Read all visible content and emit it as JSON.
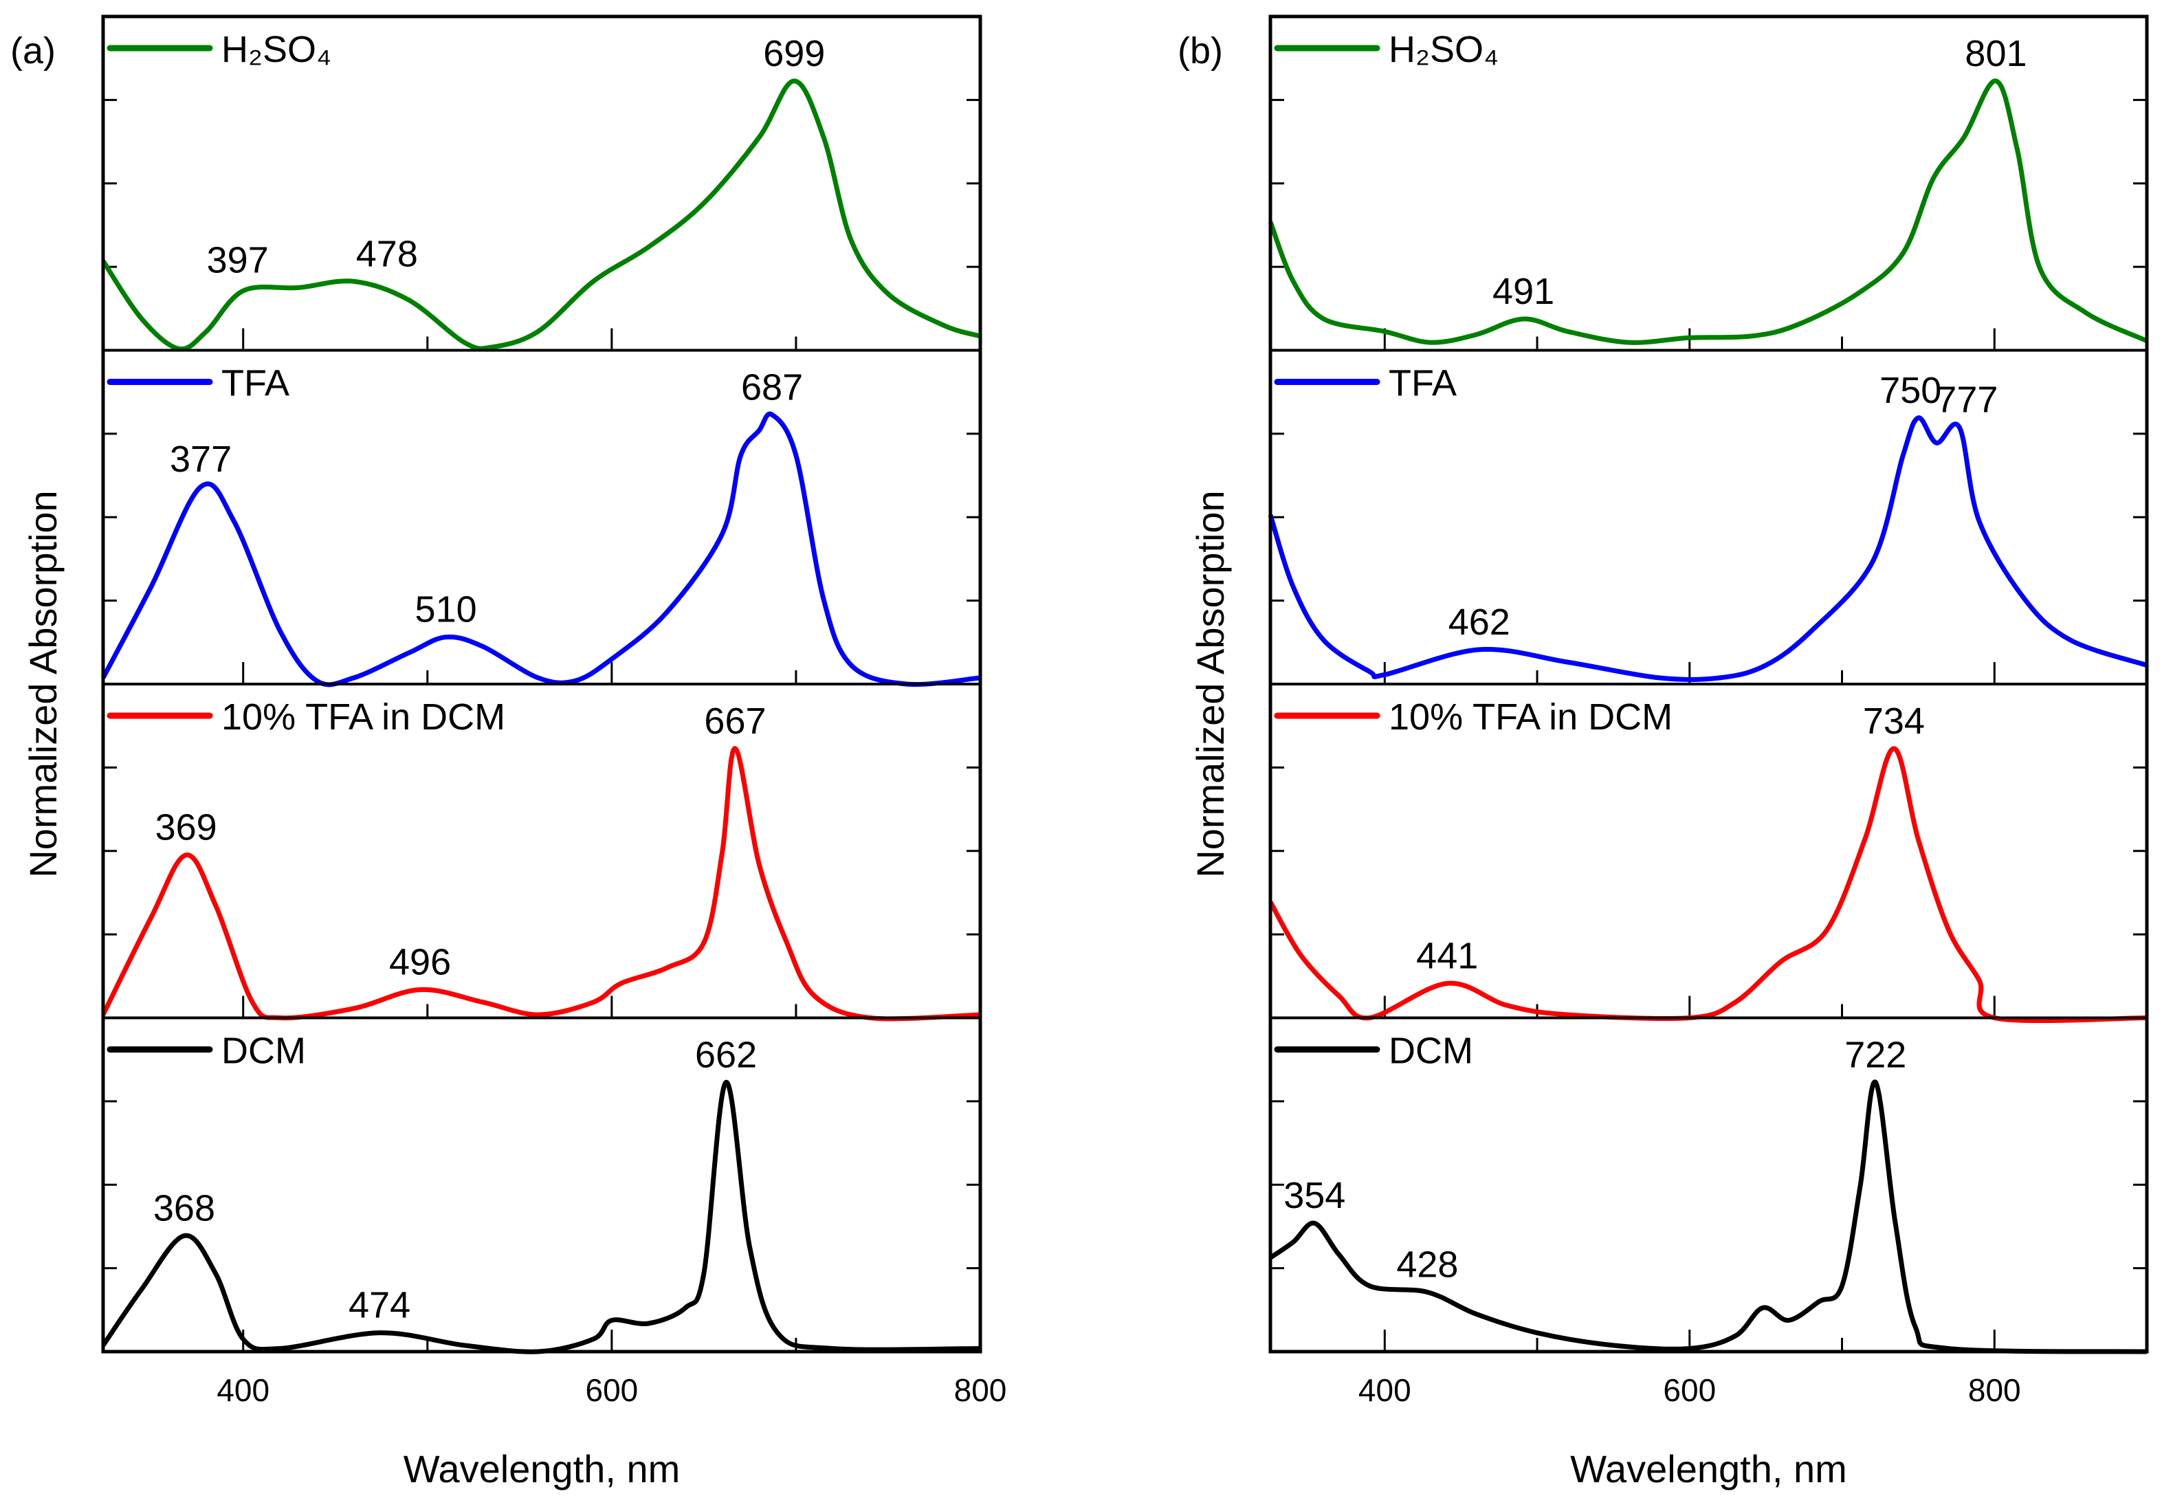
{
  "chart_data": [
    {
      "type": "line",
      "panel_label": "(a)",
      "xlabel": "Wavelength, nm",
      "ylabel": "Normalized Absorption",
      "xlim": [
        324,
        800
      ],
      "xticks": [
        400,
        600,
        800
      ],
      "minor_xticks": [
        500,
        700
      ],
      "tick_labels": [
        "400",
        "600",
        "800"
      ],
      "ylim_each": [
        0,
        1
      ],
      "legend_placement": "top-left of each subplot",
      "series": [
        {
          "name": "H₂SO₄",
          "color": "#008000",
          "x": [
            324,
            345,
            365,
            380,
            400,
            430,
            460,
            490,
            520,
            535,
            560,
            590,
            620,
            650,
            680,
            699,
            715,
            730,
            750,
            780,
            800
          ],
          "y": [
            0.285,
            0.1,
            0.005,
            0.06,
            0.19,
            0.2,
            0.22,
            0.16,
            0.025,
            0.01,
            0.06,
            0.22,
            0.33,
            0.47,
            0.68,
            0.86,
            0.68,
            0.35,
            0.18,
            0.08,
            0.045
          ],
          "annotations": [
            {
              "label": "397",
              "x": 397,
              "y": 0.2
            },
            {
              "label": "478",
              "x": 478,
              "y": 0.22
            },
            {
              "label": "699",
              "x": 699,
              "y": 0.86
            }
          ]
        },
        {
          "name": "TFA",
          "color": "#0000ff",
          "x": [
            324,
            350,
            377,
            395,
            420,
            440,
            460,
            490,
            510,
            530,
            560,
            580,
            600,
            630,
            660,
            670,
            680,
            687,
            700,
            715,
            730,
            760,
            800
          ],
          "y": [
            0.02,
            0.31,
            0.63,
            0.52,
            0.17,
            0.01,
            0.02,
            0.1,
            0.15,
            0.12,
            0.02,
            0.01,
            0.08,
            0.23,
            0.48,
            0.73,
            0.81,
            0.86,
            0.73,
            0.27,
            0.06,
            0.0,
            0.02
          ],
          "annotations": [
            {
              "label": "377",
              "x": 377,
              "y": 0.63
            },
            {
              "label": "510",
              "x": 510,
              "y": 0.15
            },
            {
              "label": "687",
              "x": 687,
              "y": 0.86
            }
          ]
        },
        {
          "name": "10% TFA in DCM",
          "color": "#ff0000",
          "x": [
            324,
            350,
            369,
            385,
            405,
            420,
            460,
            496,
            530,
            560,
            590,
            605,
            630,
            650,
            660,
            667,
            680,
            695,
            710,
            740,
            800
          ],
          "y": [
            0.01,
            0.32,
            0.52,
            0.36,
            0.05,
            0.0,
            0.03,
            0.09,
            0.05,
            0.01,
            0.05,
            0.11,
            0.16,
            0.24,
            0.53,
            0.86,
            0.49,
            0.24,
            0.07,
            0.0,
            0.01
          ],
          "annotations": [
            {
              "label": "369",
              "x": 369,
              "y": 0.52
            },
            {
              "label": "496",
              "x": 496,
              "y": 0.09
            },
            {
              "label": "667",
              "x": 667,
              "y": 0.86
            }
          ]
        },
        {
          "name": "DCM",
          "color": "#000000",
          "x": [
            324,
            345,
            368,
            385,
            400,
            420,
            474,
            520,
            560,
            590,
            600,
            620,
            640,
            650,
            662,
            675,
            690,
            720,
            800
          ],
          "y": [
            0.02,
            0.2,
            0.37,
            0.25,
            0.04,
            0.01,
            0.06,
            0.02,
            0.0,
            0.04,
            0.1,
            0.09,
            0.14,
            0.25,
            0.86,
            0.33,
            0.06,
            0.01,
            0.01
          ],
          "annotations": [
            {
              "label": "368",
              "x": 368,
              "y": 0.37
            },
            {
              "label": "474",
              "x": 474,
              "y": 0.06
            },
            {
              "label": "662",
              "x": 662,
              "y": 0.86
            }
          ]
        }
      ]
    },
    {
      "type": "line",
      "panel_label": "(b)",
      "xlabel": "Wavelength, nm",
      "ylabel": "Normalized Absorption",
      "xlim": [
        325,
        900
      ],
      "xticks": [
        400,
        600,
        800
      ],
      "minor_xticks": [
        500,
        700,
        900
      ],
      "tick_labels": [
        "400",
        "600",
        "800"
      ],
      "ylim_each": [
        0,
        1
      ],
      "legend_placement": "top-left of each subplot",
      "series": [
        {
          "name": "H₂SO₄",
          "color": "#008000",
          "x": [
            325,
            340,
            360,
            400,
            430,
            460,
            491,
            520,
            560,
            600,
            640,
            670,
            710,
            740,
            760,
            780,
            801,
            815,
            830,
            860,
            900
          ],
          "y": [
            0.41,
            0.22,
            0.1,
            0.06,
            0.025,
            0.05,
            0.1,
            0.06,
            0.025,
            0.04,
            0.045,
            0.08,
            0.18,
            0.31,
            0.55,
            0.68,
            0.86,
            0.64,
            0.26,
            0.12,
            0.03
          ],
          "annotations": [
            {
              "label": "491",
              "x": 491,
              "y": 0.1
            },
            {
              "label": "801",
              "x": 801,
              "y": 0.86
            }
          ]
        },
        {
          "name": "TFA",
          "color": "#0000ff",
          "x": [
            325,
            340,
            360,
            390,
            400,
            462,
            520,
            580,
            620,
            650,
            680,
            720,
            740,
            750,
            762,
            777,
            790,
            820,
            850,
            900
          ],
          "y": [
            0.54,
            0.31,
            0.14,
            0.04,
            0.03,
            0.11,
            0.07,
            0.02,
            0.02,
            0.06,
            0.17,
            0.39,
            0.73,
            0.85,
            0.77,
            0.82,
            0.52,
            0.27,
            0.14,
            0.06
          ],
          "annotations": [
            {
              "label": "462",
              "x": 462,
              "y": 0.11
            },
            {
              "label": "750",
              "x": 745,
              "y": 0.85
            },
            {
              "label": "777",
              "x": 782,
              "y": 0.82
            }
          ]
        },
        {
          "name": "10% TFA in DCM",
          "color": "#ff0000",
          "x": [
            325,
            345,
            370,
            390,
            441,
            480,
            520,
            600,
            630,
            660,
            690,
            715,
            734,
            750,
            770,
            790,
            800,
            900
          ],
          "y": [
            0.37,
            0.2,
            0.07,
            0.0,
            0.11,
            0.04,
            0.01,
            0.0,
            0.05,
            0.18,
            0.28,
            0.57,
            0.86,
            0.57,
            0.28,
            0.12,
            0.0,
            0.0
          ],
          "annotations": [
            {
              "label": "441",
              "x": 441,
              "y": 0.11
            },
            {
              "label": "734",
              "x": 734,
              "y": 0.86
            }
          ]
        },
        {
          "name": "DCM",
          "color": "#000000",
          "x": [
            325,
            340,
            354,
            370,
            390,
            428,
            460,
            500,
            550,
            600,
            630,
            648,
            665,
            685,
            700,
            712,
            722,
            735,
            748,
            770,
            900
          ],
          "y": [
            0.3,
            0.35,
            0.41,
            0.31,
            0.21,
            0.19,
            0.12,
            0.06,
            0.02,
            0.01,
            0.05,
            0.14,
            0.1,
            0.16,
            0.21,
            0.53,
            0.86,
            0.41,
            0.08,
            0.01,
            0.0
          ],
          "annotations": [
            {
              "label": "354",
              "x": 354,
              "y": 0.41
            },
            {
              "label": "428",
              "x": 428,
              "y": 0.19
            },
            {
              "label": "722",
              "x": 722,
              "y": 0.86
            }
          ]
        }
      ]
    }
  ]
}
